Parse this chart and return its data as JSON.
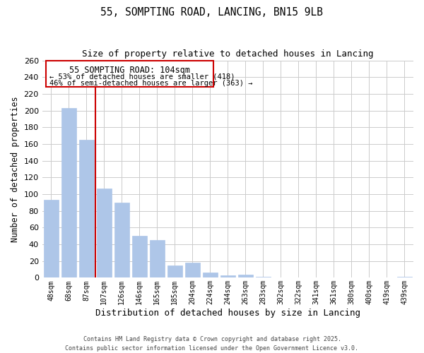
{
  "title": "55, SOMPTING ROAD, LANCING, BN15 9LB",
  "subtitle": "Size of property relative to detached houses in Lancing",
  "xlabel": "Distribution of detached houses by size in Lancing",
  "ylabel": "Number of detached properties",
  "bar_labels": [
    "48sqm",
    "68sqm",
    "87sqm",
    "107sqm",
    "126sqm",
    "146sqm",
    "165sqm",
    "185sqm",
    "204sqm",
    "224sqm",
    "244sqm",
    "263sqm",
    "283sqm",
    "302sqm",
    "322sqm",
    "341sqm",
    "361sqm",
    "380sqm",
    "400sqm",
    "419sqm",
    "439sqm"
  ],
  "bar_values": [
    93,
    203,
    165,
    107,
    90,
    50,
    45,
    15,
    18,
    6,
    3,
    4,
    1,
    0,
    0,
    0,
    0,
    0,
    0,
    0,
    1
  ],
  "bar_color": "#aec6e8",
  "bar_edge_color": "#aec6e8",
  "vline_color": "#cc0000",
  "ylim": [
    0,
    260
  ],
  "yticks": [
    0,
    20,
    40,
    60,
    80,
    100,
    120,
    140,
    160,
    180,
    200,
    220,
    240,
    260
  ],
  "annotation_title": "55 SOMPTING ROAD: 104sqm",
  "annotation_line1": "← 53% of detached houses are smaller (418)",
  "annotation_line2": "46% of semi-detached houses are larger (363) →",
  "footer_line1": "Contains HM Land Registry data © Crown copyright and database right 2025.",
  "footer_line2": "Contains public sector information licensed under the Open Government Licence v3.0.",
  "background_color": "#ffffff",
  "grid_color": "#cccccc"
}
